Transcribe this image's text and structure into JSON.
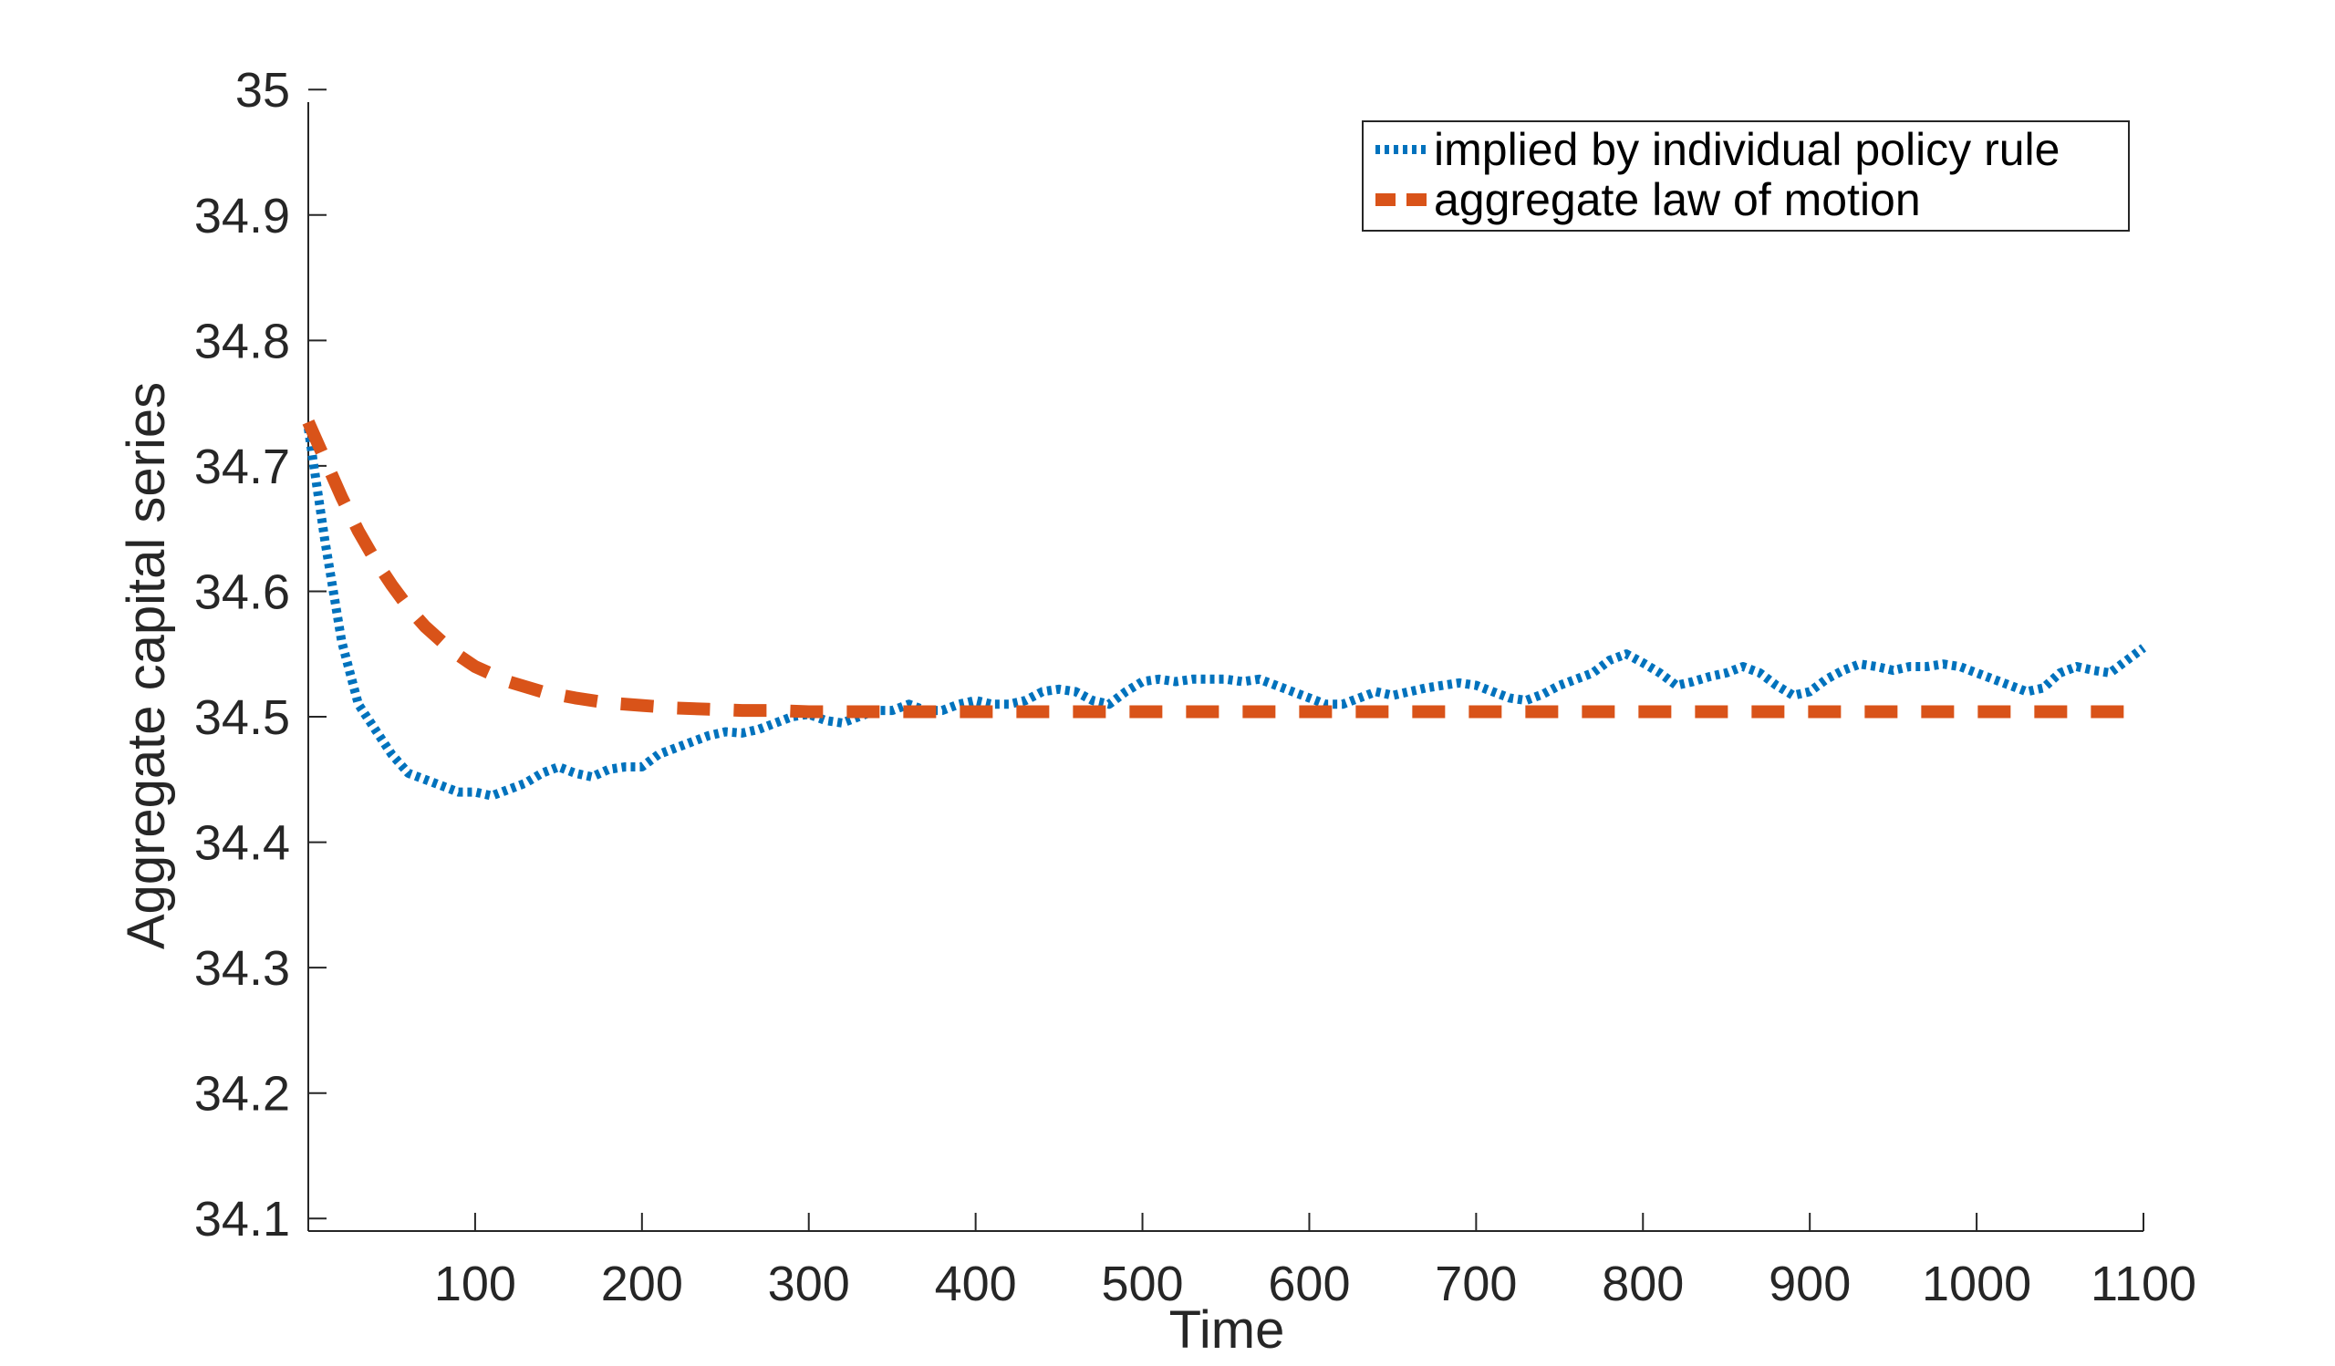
{
  "chart_data": {
    "type": "line",
    "title": "",
    "xlabel": "Time",
    "ylabel": "Aggregate capital series",
    "xlim": [
      0,
      1100
    ],
    "ylim": [
      34.09,
      34.99
    ],
    "xticks": [
      100,
      200,
      300,
      400,
      500,
      600,
      700,
      800,
      900,
      1000,
      1100
    ],
    "xtick_labels": [
      "100",
      "200",
      "300",
      "400",
      "500",
      "600",
      "700",
      "800",
      "900",
      "1000",
      "1100"
    ],
    "yticks": [
      34.1,
      34.2,
      34.3,
      34.4,
      34.5,
      34.6,
      34.7,
      34.8,
      34.9,
      35.0
    ],
    "ytick_labels": [
      "34.1",
      "34.2",
      "34.3",
      "34.4",
      "34.5",
      "34.6",
      "34.7",
      "34.8",
      "34.9",
      "35"
    ],
    "grid": false,
    "legend_position": "top-right",
    "series": [
      {
        "name": "implied by individual policy rule",
        "color": "#0072BD",
        "style": "dotted",
        "x": [
          0,
          10,
          20,
          30,
          40,
          50,
          60,
          70,
          80,
          90,
          100,
          110,
          120,
          130,
          140,
          150,
          160,
          170,
          180,
          190,
          200,
          210,
          220,
          230,
          240,
          250,
          260,
          270,
          280,
          290,
          300,
          310,
          320,
          330,
          340,
          350,
          360,
          370,
          380,
          390,
          400,
          410,
          420,
          430,
          440,
          450,
          460,
          470,
          480,
          490,
          500,
          510,
          520,
          530,
          540,
          550,
          560,
          570,
          580,
          590,
          600,
          610,
          620,
          630,
          640,
          650,
          660,
          670,
          680,
          690,
          700,
          710,
          720,
          730,
          740,
          750,
          760,
          770,
          780,
          790,
          800,
          810,
          820,
          830,
          840,
          850,
          860,
          870,
          880,
          890,
          900,
          910,
          920,
          930,
          940,
          950,
          960,
          970,
          980,
          990,
          1000,
          1010,
          1020,
          1030,
          1040,
          1050,
          1060,
          1070,
          1080,
          1090,
          1100
        ],
        "y": [
          34.73,
          34.64,
          34.56,
          34.51,
          34.49,
          34.47,
          34.455,
          34.45,
          34.445,
          34.44,
          34.44,
          34.437,
          34.442,
          34.447,
          34.455,
          34.46,
          34.455,
          34.452,
          34.458,
          34.46,
          34.46,
          34.47,
          34.475,
          34.48,
          34.485,
          34.488,
          34.487,
          34.49,
          34.495,
          34.5,
          34.502,
          34.497,
          34.495,
          34.5,
          34.505,
          34.505,
          34.51,
          34.505,
          34.505,
          34.51,
          34.513,
          34.51,
          34.51,
          34.513,
          34.52,
          34.522,
          34.52,
          34.513,
          34.51,
          34.52,
          34.528,
          34.53,
          34.528,
          34.53,
          34.53,
          34.53,
          34.528,
          34.53,
          34.525,
          34.52,
          34.515,
          34.51,
          34.51,
          34.515,
          34.52,
          34.517,
          34.52,
          34.523,
          34.525,
          34.527,
          34.525,
          34.52,
          34.515,
          34.513,
          34.518,
          34.525,
          34.53,
          34.535,
          34.545,
          34.55,
          34.543,
          34.535,
          34.525,
          34.528,
          34.532,
          34.535,
          34.54,
          34.535,
          34.525,
          34.517,
          34.52,
          34.53,
          34.537,
          34.542,
          34.54,
          34.537,
          34.54,
          34.54,
          34.542,
          34.54,
          34.535,
          34.53,
          34.525,
          34.52,
          34.523,
          34.535,
          34.54,
          34.537,
          34.535,
          34.545,
          34.555
        ]
      },
      {
        "name": "aggregate law of motion",
        "color": "#D95319",
        "style": "dashed",
        "x": [
          0,
          10,
          20,
          30,
          40,
          50,
          60,
          70,
          80,
          90,
          100,
          120,
          140,
          160,
          180,
          200,
          220,
          240,
          260,
          280,
          300,
          350,
          400,
          500,
          600,
          700,
          800,
          900,
          1000,
          1100
        ],
        "y": [
          34.735,
          34.705,
          34.675,
          34.648,
          34.625,
          34.605,
          34.587,
          34.572,
          34.56,
          34.549,
          34.54,
          34.528,
          34.52,
          34.515,
          34.511,
          34.509,
          34.507,
          34.506,
          34.505,
          34.505,
          34.504,
          34.504,
          34.504,
          34.504,
          34.504,
          34.504,
          34.504,
          34.504,
          34.504,
          34.504
        ]
      }
    ]
  }
}
